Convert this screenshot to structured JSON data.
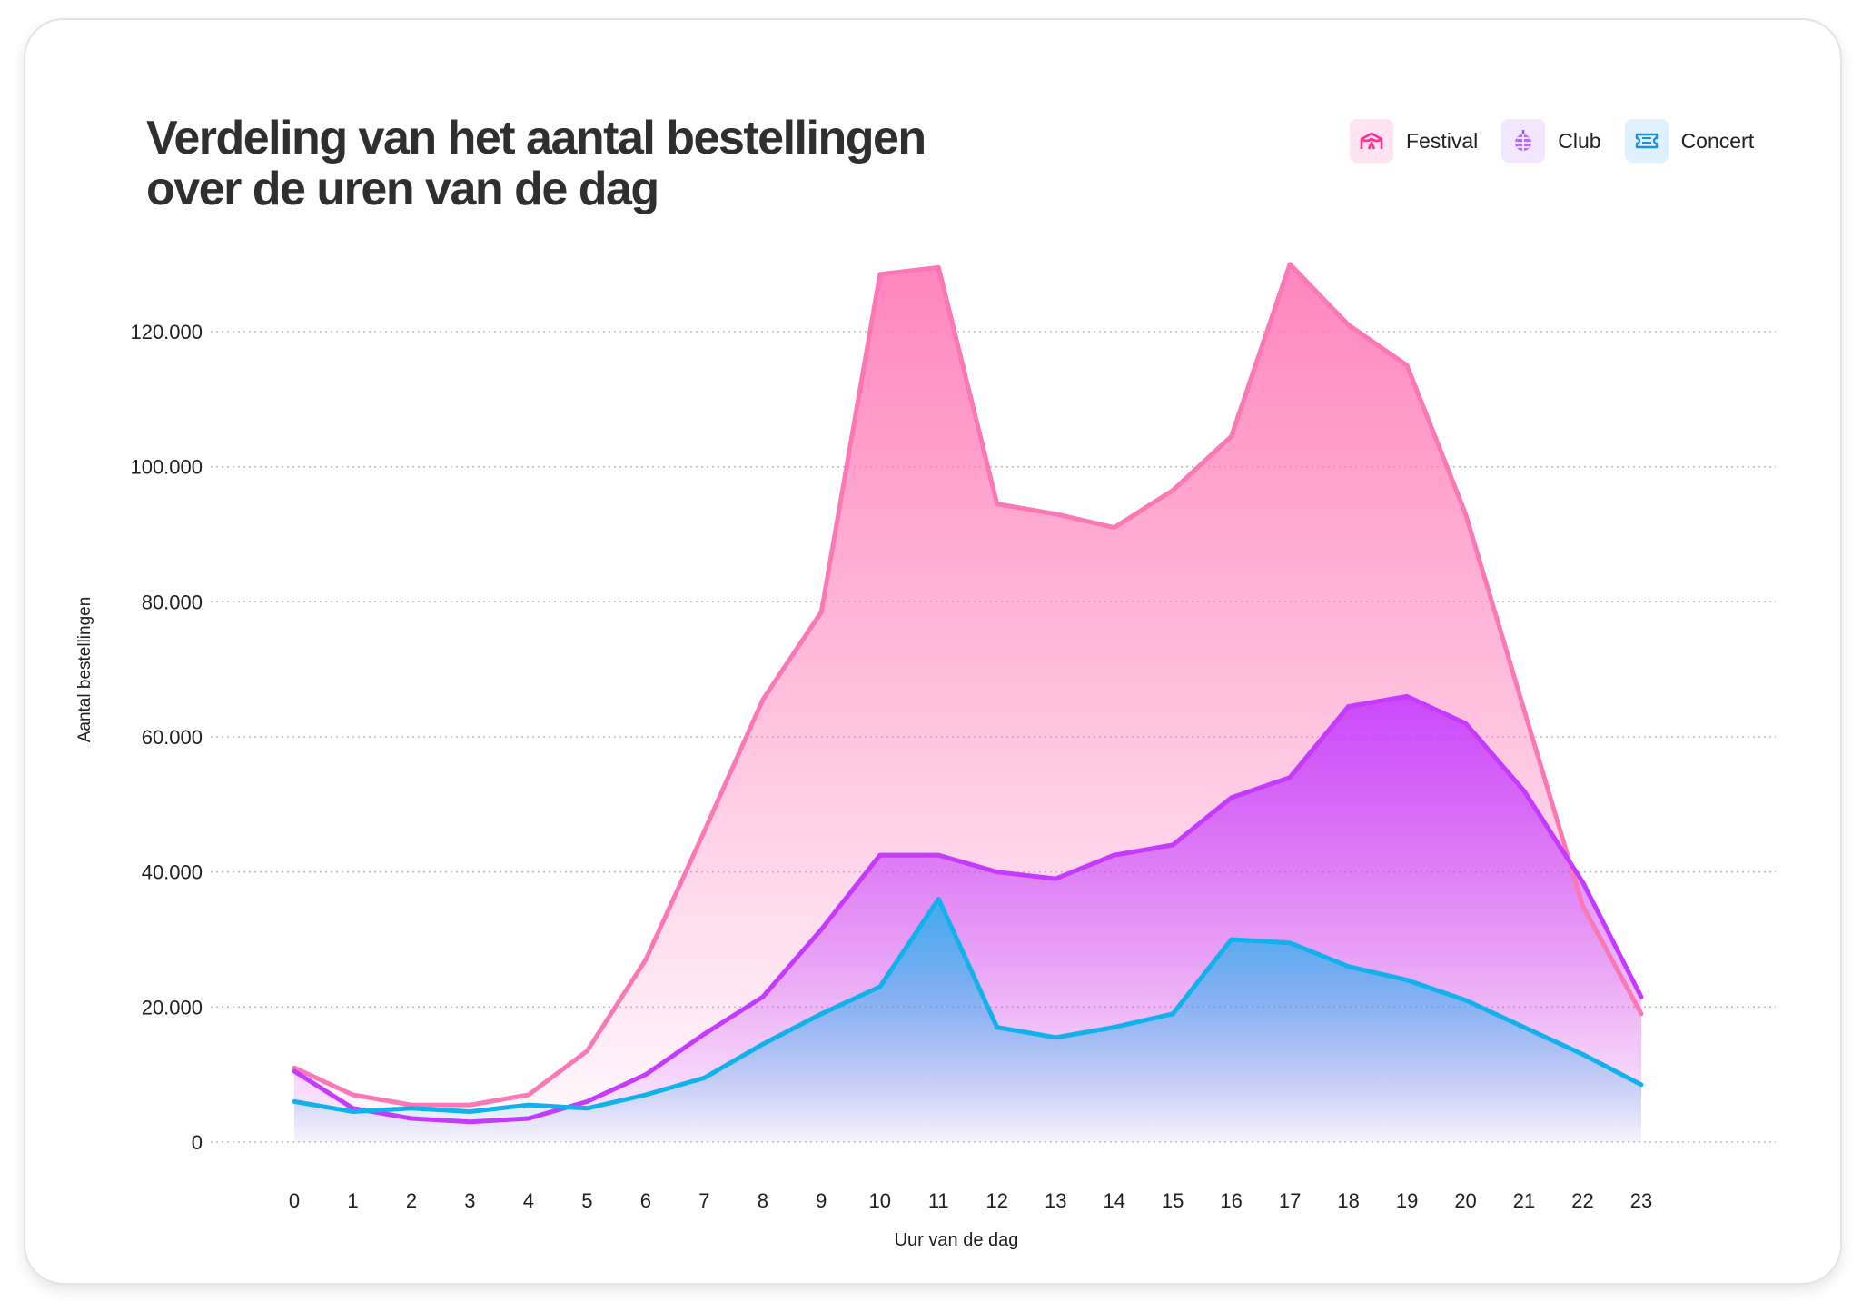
{
  "title_lines": [
    "Verdeling van het aantal bestellingen",
    "over de uren van de dag"
  ],
  "legend": [
    {
      "label": "Festival",
      "icon": "tent-icon",
      "color": "#ff2e8f",
      "bg": "#ffe3f1"
    },
    {
      "label": "Club",
      "icon": "disco-ball-icon",
      "color": "#9b4dff",
      "bg": "#f3e6ff"
    },
    {
      "label": "Concert",
      "icon": "ticket-icon",
      "color": "#1a8fe0",
      "bg": "#dff1ff"
    }
  ],
  "chart_data": {
    "type": "area",
    "xlabel": "Uur van de dag",
    "ylabel": "Aantal bestellingen",
    "x": [
      0,
      1,
      2,
      3,
      4,
      5,
      6,
      7,
      8,
      9,
      10,
      11,
      12,
      13,
      14,
      15,
      16,
      17,
      18,
      19,
      20,
      21,
      22,
      23
    ],
    "x_tick_labels": [
      "0",
      "1",
      "2",
      "3",
      "4",
      "5",
      "6",
      "7",
      "8",
      "9",
      "10",
      "11",
      "12",
      "13",
      "14",
      "15",
      "16",
      "17",
      "18",
      "19",
      "20",
      "21",
      "22",
      "23"
    ],
    "ylim": [
      0,
      130000
    ],
    "y_ticks": [
      0,
      20000,
      40000,
      60000,
      80000,
      100000,
      120000
    ],
    "y_tick_labels": [
      "0",
      "20.000",
      "40.000",
      "60.000",
      "80.000",
      "100.000",
      "120.000"
    ],
    "grid": true,
    "legend_position": "top-right",
    "series": [
      {
        "name": "Festival",
        "color": "#fb78b5",
        "fill": "#ff7fba",
        "values": [
          11000,
          7000,
          5500,
          5500,
          7000,
          13500,
          27000,
          46000,
          65500,
          78500,
          128500,
          129500,
          94500,
          93000,
          91000,
          96500,
          104500,
          130000,
          121000,
          115000,
          93000,
          64000,
          35000,
          19000
        ]
      },
      {
        "name": "Club",
        "color": "#c43bff",
        "fill": "#c53cff",
        "values": [
          10500,
          5000,
          3500,
          3000,
          3500,
          6000,
          10000,
          16000,
          21500,
          31500,
          42500,
          42500,
          40000,
          39000,
          42500,
          44000,
          51000,
          54000,
          64500,
          66000,
          62000,
          52000,
          38500,
          21500
        ]
      },
      {
        "name": "Concert",
        "color": "#10b2ec",
        "fill": "#2fb0ee",
        "values": [
          6000,
          4500,
          5000,
          4500,
          5500,
          5000,
          7000,
          9500,
          14500,
          19000,
          23000,
          36000,
          17000,
          15500,
          17000,
          19000,
          30000,
          29500,
          26000,
          24000,
          21000,
          17000,
          13000,
          8500
        ]
      }
    ]
  }
}
